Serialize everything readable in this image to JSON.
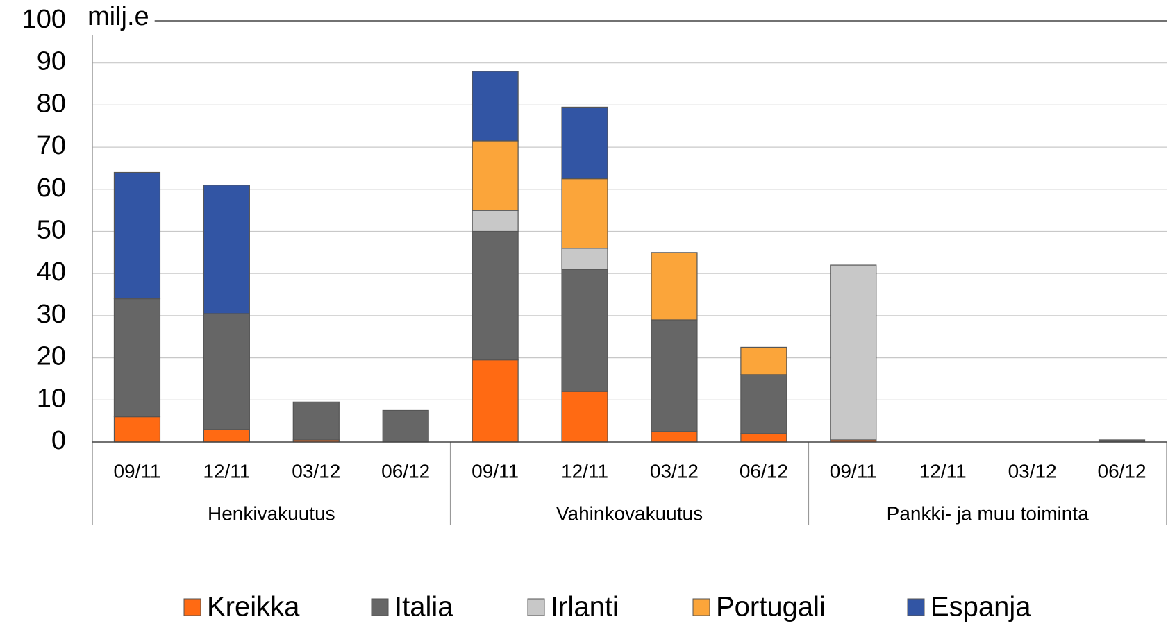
{
  "chart_data": {
    "type": "stacked_bar",
    "y_label": "milj.e",
    "groups": [
      {
        "label": "Henkivakuutus",
        "categories": [
          "09/11",
          "12/11",
          "03/12",
          "06/12"
        ]
      },
      {
        "label": "Vahinkovakuutus",
        "categories": [
          "09/11",
          "12/11",
          "03/12",
          "06/12"
        ]
      },
      {
        "label": "Pankki- ja muu toiminta",
        "categories": [
          "09/11",
          "12/11",
          "03/12",
          "06/12"
        ]
      }
    ],
    "series": [
      {
        "name": "Kreikka",
        "color": "#ff6a13",
        "values": [
          6,
          3,
          0.5,
          0,
          19.5,
          12,
          2.5,
          2,
          0.5,
          0,
          0,
          0
        ]
      },
      {
        "name": "Italia",
        "color": "#666666",
        "values": [
          28,
          27.5,
          9,
          7.5,
          30.5,
          29,
          26.5,
          14,
          0,
          0,
          0,
          0.5
        ]
      },
      {
        "name": "Irlanti",
        "color": "#c8c8c8",
        "values": [
          0,
          0,
          0,
          0,
          5,
          5,
          0,
          0,
          41.5,
          0,
          0,
          0
        ]
      },
      {
        "name": "Portugali",
        "color": "#fba53a",
        "values": [
          0,
          0,
          0,
          0,
          16.5,
          16.5,
          16,
          6.5,
          0,
          0,
          0,
          0
        ]
      },
      {
        "name": "Espanja",
        "color": "#3255a4",
        "values": [
          30,
          30.5,
          0,
          0,
          16.5,
          17,
          0,
          0,
          0,
          0,
          0,
          0
        ]
      }
    ],
    "ylim": [
      0,
      100
    ],
    "yticks": [
      0,
      10,
      20,
      30,
      40,
      50,
      60,
      70,
      80,
      90,
      100
    ],
    "grid": true,
    "legend": "bottom"
  }
}
